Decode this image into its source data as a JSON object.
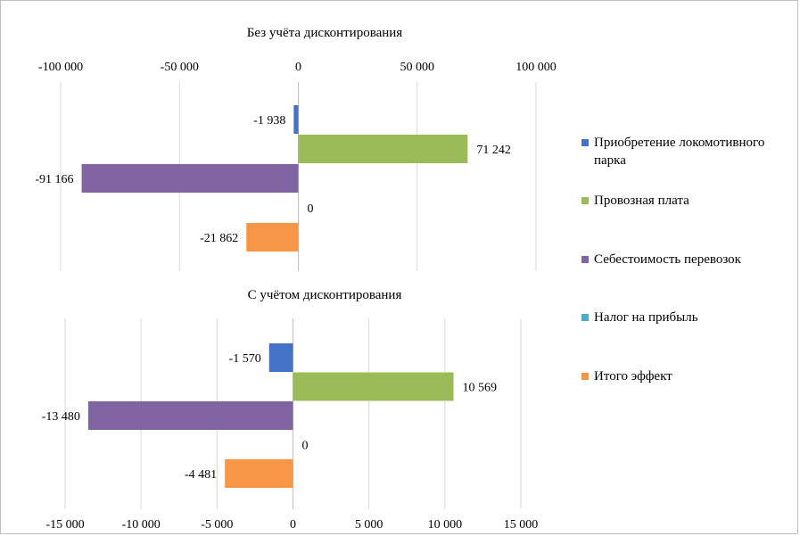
{
  "chart_data": [
    {
      "type": "bar",
      "orientation": "horizontal",
      "title": "Без учёта дисконтирования",
      "axis_position": "top",
      "xlim": [
        -100000,
        100000
      ],
      "ticks": [
        -100000,
        -50000,
        0,
        50000,
        100000
      ],
      "tick_labels": [
        "-100 000",
        "-50 000",
        "0",
        "50 000",
        "100 000"
      ],
      "series": [
        {
          "name": "Приобретение локомотивного парка",
          "value": -1938,
          "label": "-1 938"
        },
        {
          "name": "Провозная плата",
          "value": 71242,
          "label": "71 242"
        },
        {
          "name": "Себестоимость перевозок",
          "value": -91166,
          "label": "-91 166"
        },
        {
          "name": "Налог на прибыль",
          "value": 0,
          "label": "0"
        },
        {
          "name": "Итого эффект",
          "value": -21862,
          "label": "-21 862"
        }
      ]
    },
    {
      "type": "bar",
      "orientation": "horizontal",
      "title": "С учётом дисконтирования",
      "axis_position": "bottom",
      "xlim": [
        -15000,
        15000
      ],
      "ticks": [
        -15000,
        -10000,
        -5000,
        0,
        5000,
        10000,
        15000
      ],
      "tick_labels": [
        "-15 000",
        "-10 000",
        "-5 000",
        "0",
        "5 000",
        "10 000",
        "15 000"
      ],
      "series": [
        {
          "name": "Приобретение локомотивного парка",
          "value": -1570,
          "label": "-1 570"
        },
        {
          "name": "Провозная плата",
          "value": 10569,
          "label": "10 569"
        },
        {
          "name": "Себестоимость перевозок",
          "value": -13480,
          "label": "-13 480"
        },
        {
          "name": "Налог на прибыль",
          "value": 0,
          "label": "0"
        },
        {
          "name": "Итого эффект",
          "value": -4481,
          "label": "-4 481"
        }
      ]
    }
  ],
  "legend": [
    {
      "label": "Приобретение локомотивного парка",
      "color": "#4472c4"
    },
    {
      "label": "Провозная плата",
      "color": "#9bbb59"
    },
    {
      "label": "Себестоимость перевозок",
      "color": "#8064a2"
    },
    {
      "label": "Налог на прибыль",
      "color": "#4bacc6"
    },
    {
      "label": "Итого эффект",
      "color": "#f79646"
    }
  ]
}
